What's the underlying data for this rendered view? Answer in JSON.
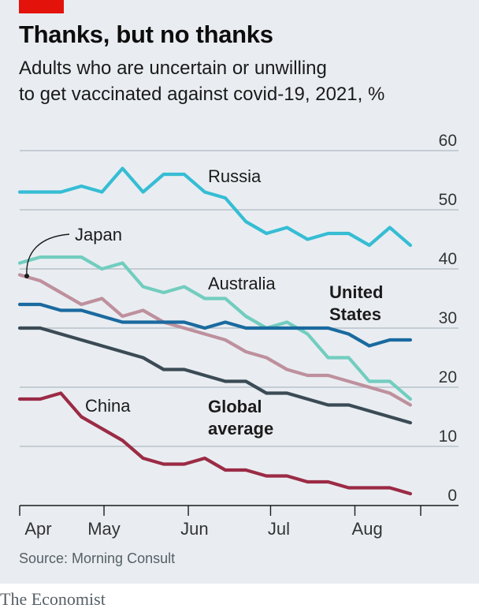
{
  "header": {
    "title": "Thanks, but no thanks",
    "subtitle_line1": "Adults who are uncertain or unwilling",
    "subtitle_line2": "to get vaccinated against covid-19, 2021, %"
  },
  "footer": {
    "source": "Source: Morning Consult",
    "brand": "The Economist"
  },
  "colors": {
    "panel": "#e9edf1",
    "grid": "#b7c2cb",
    "accent": "#e3120b",
    "russia": "#36bdd4",
    "australia": "#72cdbf",
    "japan": "#be909d",
    "us": "#1a6a9f",
    "global": "#3b4b55",
    "china": "#9b2b45"
  },
  "chart_data": {
    "type": "line",
    "title": "Thanks, but no thanks",
    "ylabel": "%",
    "ylim": [
      0,
      60
    ],
    "yticks": [
      0,
      10,
      20,
      30,
      40,
      50,
      60
    ],
    "xlim": [
      0,
      19.5
    ],
    "x_tick_positions": [
      0,
      4.1,
      8.2,
      12.2,
      16.3,
      19.5
    ],
    "month_labels": [
      {
        "label": "Apr",
        "x": 0.9
      },
      {
        "label": "May",
        "x": 4.1
      },
      {
        "label": "Jun",
        "x": 8.5
      },
      {
        "label": "Jul",
        "x": 12.6
      },
      {
        "label": "Aug",
        "x": 16.9
      }
    ],
    "x": [
      0,
      1,
      2,
      3,
      4,
      5,
      6,
      7,
      8,
      9,
      10,
      11,
      12,
      13,
      14,
      15,
      16,
      17,
      18,
      19
    ],
    "series": [
      {
        "name": "Russia",
        "label": "Russia",
        "color_key": "russia",
        "values": [
          53,
          53,
          53,
          54,
          53,
          57,
          53,
          56,
          56,
          53,
          52,
          48,
          46,
          47,
          45,
          46,
          46,
          44,
          47,
          44
        ]
      },
      {
        "name": "Australia",
        "label": "Australia",
        "color_key": "australia",
        "values": [
          41,
          42,
          42,
          42,
          40,
          41,
          37,
          36,
          37,
          35,
          35,
          32,
          30,
          31,
          29,
          25,
          25,
          21,
          21,
          18
        ]
      },
      {
        "name": "Japan",
        "label": "Japan",
        "color_key": "japan",
        "values": [
          39,
          38,
          36,
          34,
          35,
          32,
          33,
          31,
          30,
          29,
          28,
          26,
          25,
          23,
          22,
          22,
          21,
          20,
          19,
          17
        ]
      },
      {
        "name": "United States",
        "label": "United States",
        "color_key": "us",
        "values": [
          34,
          34,
          33,
          33,
          32,
          31,
          31,
          31,
          31,
          30,
          31,
          30,
          30,
          30,
          30,
          30,
          29,
          27,
          28,
          28
        ]
      },
      {
        "name": "Global average",
        "label": "Global average",
        "color_key": "global",
        "values": [
          30,
          30,
          29,
          28,
          27,
          26,
          25,
          23,
          23,
          22,
          21,
          21,
          19,
          19,
          18,
          17,
          17,
          16,
          15,
          14
        ]
      },
      {
        "name": "China",
        "label": "China",
        "color_key": "china",
        "values": [
          18,
          18,
          19,
          15,
          13,
          11,
          8,
          7,
          7,
          8,
          6,
          6,
          5,
          5,
          4,
          4,
          3,
          3,
          3,
          2
        ]
      }
    ],
    "annotations": [
      {
        "text": "Russia",
        "series": "Russia"
      },
      {
        "text": "Japan",
        "series": "Japan"
      },
      {
        "text": "Australia",
        "series": "Australia"
      },
      {
        "text": "United",
        "series": "United States"
      },
      {
        "text": "States",
        "series": "United States"
      },
      {
        "text": "Global",
        "series": "Global average"
      },
      {
        "text": "average",
        "series": "Global average"
      },
      {
        "text": "China",
        "series": "China"
      }
    ]
  }
}
